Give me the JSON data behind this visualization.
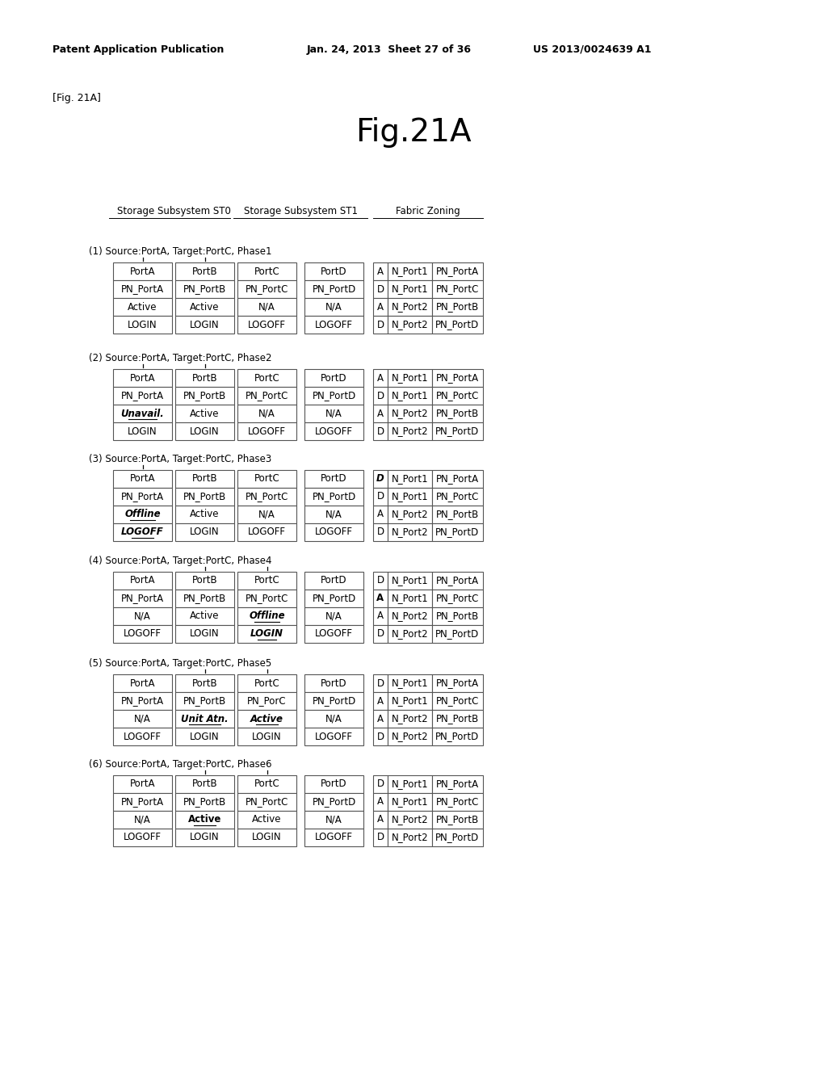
{
  "title": "Fig.21A",
  "fig_label": "[Fig. 21A]",
  "patent_header": "Patent Application Publication",
  "patent_date": "Jan. 24, 2013  Sheet 27 of 36",
  "patent_num": "US 2013/0024639 A1",
  "col_headers": [
    "Storage Subsystem ST0",
    "Storage Subsystem ST1",
    "Fabric Zoning"
  ],
  "phase_labels": [
    "(1) Source:PortA, Target:PortC, Phase1",
    "(2) Source:PortA, Target:PortC, Phase2",
    "(3) Source:PortA, Target:PortC, Phase3",
    "(4) Source:PortA, Target:PortC, Phase4",
    "(5) Source:PortA, Target:PortC, Phase5",
    "(6) Source:PortA, Target:PortC, Phase6"
  ],
  "phases": [
    {
      "portA": [
        "PortA",
        "PN_PortA",
        "Active",
        "LOGIN"
      ],
      "portB": [
        "PortB",
        "PN_PortB",
        "Active",
        "LOGIN"
      ],
      "portC": [
        "PortC",
        "PN_PortC",
        "N/A",
        "LOGOFF"
      ],
      "portD": [
        "PortD",
        "PN_PortD",
        "N/A",
        "LOGOFF"
      ],
      "fabric": [
        [
          "A",
          "N_Port1",
          "PN_PortA"
        ],
        [
          "D",
          "N_Port1",
          "PN_PortC"
        ],
        [
          "A",
          "N_Port2",
          "PN_PortB"
        ],
        [
          "D",
          "N_Port2",
          "PN_PortD"
        ]
      ],
      "special": [],
      "arrows": [
        "portA",
        "portB"
      ]
    },
    {
      "portA": [
        "PortA",
        "PN_PortA",
        "Unavail.",
        "LOGIN"
      ],
      "portB": [
        "PortB",
        "PN_PortB",
        "Active",
        "LOGIN"
      ],
      "portC": [
        "PortC",
        "PN_PortC",
        "N/A",
        "LOGOFF"
      ],
      "portD": [
        "PortD",
        "PN_PortD",
        "N/A",
        "LOGOFF"
      ],
      "fabric": [
        [
          "A",
          "N_Port1",
          "PN_PortA"
        ],
        [
          "D",
          "N_Port1",
          "PN_PortC"
        ],
        [
          "A",
          "N_Port2",
          "PN_PortB"
        ],
        [
          "D",
          "N_Port2",
          "PN_PortD"
        ]
      ],
      "special": [
        {
          "port": "portA",
          "row": 2,
          "bold": true,
          "italic": true,
          "underline": true
        }
      ],
      "arrows": [
        "portA",
        "portB"
      ]
    },
    {
      "portA": [
        "PortA",
        "PN_PortA",
        "Offline",
        "LOGOFF"
      ],
      "portB": [
        "PortB",
        "PN_PortB",
        "Active",
        "LOGIN"
      ],
      "portC": [
        "PortC",
        "PN_PortC",
        "N/A",
        "LOGOFF"
      ],
      "portD": [
        "PortD",
        "PN_PortD",
        "N/A",
        "LOGOFF"
      ],
      "fabric": [
        [
          "D",
          "N_Port1",
          "PN_PortA"
        ],
        [
          "D",
          "N_Port1",
          "PN_PortC"
        ],
        [
          "A",
          "N_Port2",
          "PN_PortB"
        ],
        [
          "D",
          "N_Port2",
          "PN_PortD"
        ]
      ],
      "special": [
        {
          "port": "portA",
          "row": 2,
          "bold": true,
          "italic": true,
          "underline": true
        },
        {
          "port": "portA",
          "row": 3,
          "bold": true,
          "italic": true,
          "underline": true
        },
        {
          "fabric_row": 0,
          "col": 0,
          "bold": true,
          "italic": true
        }
      ],
      "arrows": [
        "portA"
      ]
    },
    {
      "portA": [
        "PortA",
        "PN_PortA",
        "N/A",
        "LOGOFF"
      ],
      "portB": [
        "PortB",
        "PN_PortB",
        "Active",
        "LOGIN"
      ],
      "portC": [
        "PortC",
        "PN_PortC",
        "Offline",
        "LOGIN"
      ],
      "portD": [
        "PortD",
        "PN_PortD",
        "N/A",
        "LOGOFF"
      ],
      "fabric": [
        [
          "D",
          "N_Port1",
          "PN_PortA"
        ],
        [
          "A",
          "N_Port1",
          "PN_PortC"
        ],
        [
          "A",
          "N_Port2",
          "PN_PortB"
        ],
        [
          "D",
          "N_Port2",
          "PN_PortD"
        ]
      ],
      "special": [
        {
          "port": "portC",
          "row": 2,
          "bold": true,
          "italic": true,
          "underline": true
        },
        {
          "port": "portC",
          "row": 3,
          "bold": true,
          "italic": true,
          "underline": true
        },
        {
          "fabric_row": 1,
          "col": 0,
          "bold": true,
          "italic": false
        }
      ],
      "arrows": [
        "portB",
        "portC"
      ]
    },
    {
      "portA": [
        "PortA",
        "PN_PortA",
        "N/A",
        "LOGOFF"
      ],
      "portB": [
        "PortB",
        "PN_PortB",
        "Unit Atn.",
        "LOGIN"
      ],
      "portC": [
        "PortC",
        "PN_PorC",
        "Active",
        "LOGIN"
      ],
      "portD": [
        "PortD",
        "PN_PortD",
        "N/A",
        "LOGOFF"
      ],
      "fabric": [
        [
          "D",
          "N_Port1",
          "PN_PortA"
        ],
        [
          "A",
          "N_Port1",
          "PN_PortC"
        ],
        [
          "A",
          "N_Port2",
          "PN_PortB"
        ],
        [
          "D",
          "N_Port2",
          "PN_PortD"
        ]
      ],
      "special": [
        {
          "port": "portB",
          "row": 2,
          "bold": true,
          "italic": true,
          "underline": true
        },
        {
          "port": "portC",
          "row": 2,
          "bold": true,
          "italic": true,
          "underline": true
        }
      ],
      "arrows": [
        "portB",
        "portC"
      ]
    },
    {
      "portA": [
        "PortA",
        "PN_PortA",
        "N/A",
        "LOGOFF"
      ],
      "portB": [
        "PortB",
        "PN_PortB",
        "Active",
        "LOGIN"
      ],
      "portC": [
        "PortC",
        "PN_PortC",
        "Active",
        "LOGIN"
      ],
      "portD": [
        "PortD",
        "PN_PortD",
        "N/A",
        "LOGOFF"
      ],
      "fabric": [
        [
          "D",
          "N_Port1",
          "PN_PortA"
        ],
        [
          "A",
          "N_Port1",
          "PN_PortC"
        ],
        [
          "A",
          "N_Port2",
          "PN_PortB"
        ],
        [
          "D",
          "N_Port2",
          "PN_PortD"
        ]
      ],
      "special": [
        {
          "port": "portB",
          "row": 2,
          "bold": true,
          "italic": false,
          "underline": true
        }
      ],
      "arrows": [
        "portB",
        "portC"
      ]
    }
  ]
}
